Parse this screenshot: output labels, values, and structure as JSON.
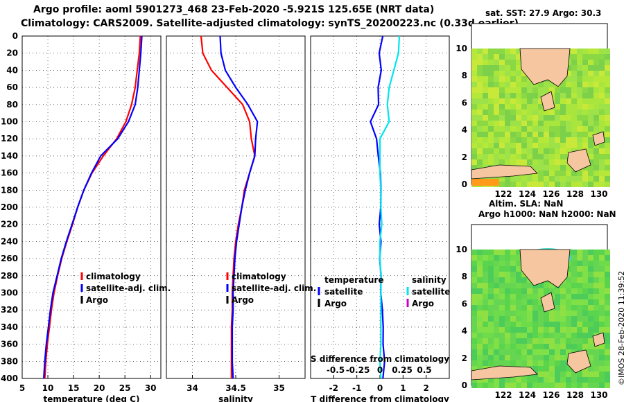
{
  "header": {
    "line1": "Argo profile: aoml 5901273_468 23-Feb-2020 -5.921S 125.65E (NRT data)",
    "line2": "Climatology: CARS2009. Satellite-adjusted climatology: synTS_20200223.nc (0.33d earlier)"
  },
  "map_top": {
    "title": "sat. SST: 27.9 Argo: 30.3",
    "sub": "Altim. SLA: NaN"
  },
  "map_bottom": {
    "title": "Argo h1000: NaN h2000: NaN"
  },
  "credit": "©IMOS 28-Feb-2020 11:39:52",
  "colors": {
    "climatology": "#ff0000",
    "satellite_adj": "#0000ff",
    "argo": "#000000",
    "salinity_sat": "#00e5ee",
    "salinity_argo": "#cc00cc",
    "land": "#f5c6a0",
    "sea": "#88dd44"
  },
  "chart_data": [
    {
      "type": "line",
      "xlabel": "temperature (deg C)",
      "ylabel": "depth",
      "xlim": [
        5,
        32
      ],
      "ylim": [
        400,
        0
      ],
      "xticks": [
        5,
        10,
        15,
        20,
        25,
        30
      ],
      "yticks": [
        0,
        20,
        40,
        60,
        80,
        100,
        120,
        140,
        160,
        180,
        200,
        220,
        240,
        260,
        280,
        300,
        320,
        340,
        360,
        380,
        400
      ],
      "legend": [
        "climatology",
        "satellite-adj. clim.",
        "Argo"
      ],
      "series": [
        {
          "name": "climatology",
          "depth": [
            0,
            20,
            40,
            60,
            80,
            100,
            120,
            140,
            160,
            180,
            200,
            220,
            240,
            260,
            280,
            300,
            320,
            340,
            360,
            380,
            400
          ],
          "values": [
            28.0,
            27.8,
            27.4,
            27.0,
            26.3,
            25.2,
            23.4,
            20.8,
            18.6,
            17.0,
            15.8,
            14.8,
            13.7,
            12.7,
            11.9,
            11.2,
            10.7,
            10.3,
            9.9,
            9.6,
            9.4
          ]
        },
        {
          "name": "satellite-adj. clim.",
          "depth": [
            0,
            20,
            40,
            60,
            80,
            100,
            120,
            140,
            160,
            180,
            200,
            220,
            240,
            260,
            280,
            300,
            320,
            340,
            360,
            380,
            400
          ],
          "values": [
            28.3,
            28.1,
            27.8,
            27.5,
            27.0,
            25.7,
            23.6,
            20.3,
            18.5,
            17.0,
            15.8,
            14.7,
            13.6,
            12.6,
            11.8,
            11.0,
            10.5,
            10.1,
            9.7,
            9.4,
            9.2
          ]
        }
      ]
    },
    {
      "type": "line",
      "xlabel": "salinity",
      "xlim": [
        33.7,
        35.3
      ],
      "ylim": [
        400,
        0
      ],
      "xticks": [
        34,
        34.5,
        35
      ],
      "legend": [
        "climatology",
        "satellite-adj. clim.",
        "Argo"
      ],
      "series": [
        {
          "name": "climatology",
          "depth": [
            0,
            20,
            40,
            60,
            80,
            100,
            120,
            140,
            160,
            180,
            200,
            220,
            240,
            260,
            280,
            300,
            320,
            340,
            360,
            380,
            400
          ],
          "values": [
            34.1,
            34.12,
            34.22,
            34.4,
            34.58,
            34.66,
            34.68,
            34.72,
            34.66,
            34.6,
            34.57,
            34.53,
            34.5,
            34.48,
            34.47,
            34.46,
            34.46,
            34.45,
            34.45,
            34.45,
            34.45
          ]
        },
        {
          "name": "satellite-adj. clim.",
          "depth": [
            0,
            20,
            40,
            60,
            80,
            100,
            120,
            140,
            160,
            180,
            200,
            220,
            240,
            260,
            280,
            300,
            320,
            340,
            360,
            380,
            400
          ],
          "values": [
            34.32,
            34.33,
            34.38,
            34.5,
            34.64,
            34.75,
            34.73,
            34.72,
            34.66,
            34.61,
            34.57,
            34.54,
            34.51,
            34.49,
            34.48,
            34.47,
            34.47,
            34.46,
            34.46,
            34.46,
            34.47
          ]
        }
      ]
    },
    {
      "type": "line",
      "xlabel": "T difference from climatology",
      "top_label": "S difference from climatology",
      "xlim": [
        -3,
        3
      ],
      "ylim": [
        400,
        0
      ],
      "xticks": [
        -2,
        -1,
        0,
        1,
        2
      ],
      "top_ticks": [
        "-0.5",
        "-0.25",
        "0",
        "0.25",
        "0.5"
      ],
      "legend_left_title": "temperature",
      "legend_right_title": "salinity",
      "legend_left": [
        "satellite",
        "Argo"
      ],
      "legend_right": [
        "satellite",
        "Argo"
      ],
      "series": [
        {
          "name": "temperature satellite",
          "depth": [
            0,
            20,
            40,
            60,
            80,
            100,
            120,
            140,
            160,
            180,
            200,
            220,
            240,
            260,
            280,
            300,
            320,
            340,
            360,
            380,
            400
          ],
          "values": [
            0.1,
            -0.05,
            0.0,
            -0.1,
            -0.1,
            -0.4,
            -0.2,
            -0.1,
            0.0,
            0.0,
            0.0,
            0.0,
            0.0,
            0.0,
            0.05,
            0.05,
            0.05,
            0.1,
            0.1,
            0.15,
            0.1
          ]
        },
        {
          "name": "salinity satellite",
          "depth": [
            0,
            20,
            40,
            60,
            80,
            100,
            120,
            140,
            160,
            180,
            200,
            220,
            240,
            260,
            280,
            300,
            320,
            340,
            360,
            380,
            400
          ],
          "values": [
            0.21,
            0.2,
            0.15,
            0.1,
            0.08,
            0.1,
            0.0,
            0.0,
            0.0,
            0.01,
            0.01,
            0.02,
            0.0,
            0.0,
            0.01,
            0.01,
            0.01,
            0.01,
            0.01,
            0.0,
            0.01
          ]
        }
      ]
    },
    {
      "type": "heatmap",
      "title": "sat. SST: 27.9 Argo: 30.3",
      "xticks": [
        122,
        124,
        126,
        128,
        130
      ],
      "yticks": [
        0,
        2,
        4,
        6,
        8,
        10
      ]
    },
    {
      "type": "heatmap",
      "title": "Argo h1000: NaN h2000: NaN",
      "xticks": [
        122,
        124,
        126,
        128,
        130
      ],
      "yticks": [
        0,
        2,
        4,
        6,
        8,
        10
      ]
    }
  ]
}
